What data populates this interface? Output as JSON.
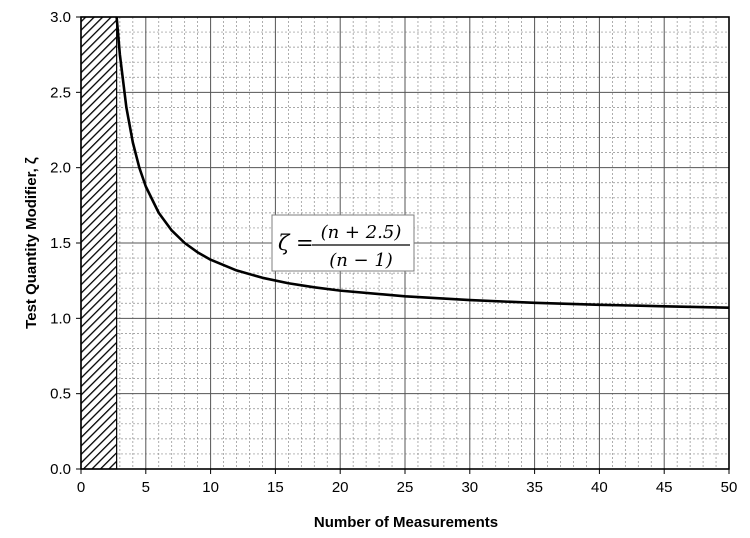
{
  "chart_data": {
    "type": "line",
    "title": "",
    "xlabel": "Number of Measurements",
    "ylabel": "Test Quantity Modifier, ζ",
    "xlim": [
      0,
      50
    ],
    "ylim": [
      0.0,
      3.0
    ],
    "x_ticks": [
      "0",
      "5",
      "10",
      "15",
      "20",
      "25",
      "30",
      "35",
      "40",
      "45",
      "50"
    ],
    "y_ticks": [
      "0.0",
      "0.5",
      "1.0",
      "1.5",
      "2.0",
      "2.5",
      "3.0"
    ],
    "x_minor_step": 1,
    "y_minor_step": 0.1,
    "grid": true,
    "excluded_region": {
      "x_from": 0,
      "x_to": 2.75,
      "pattern": "hatched"
    },
    "series": [
      {
        "formula": "zeta = (n + 2.5) / (n - 1)",
        "x": [
          2.75,
          3,
          3.5,
          4,
          4.5,
          5,
          6,
          7,
          8,
          9,
          10,
          12,
          14,
          16,
          18,
          20,
          25,
          30,
          35,
          40,
          45,
          50
        ],
        "values": [
          3.0,
          2.75,
          2.4,
          2.167,
          2.0,
          1.875,
          1.7,
          1.583,
          1.5,
          1.438,
          1.389,
          1.318,
          1.269,
          1.233,
          1.206,
          1.184,
          1.146,
          1.121,
          1.103,
          1.09,
          1.08,
          1.071
        ],
        "color": "#000000"
      }
    ],
    "annotation": {
      "lhs": "ζ =",
      "numerator": "(n + 2.5)",
      "denominator": "(n − 1)"
    }
  }
}
